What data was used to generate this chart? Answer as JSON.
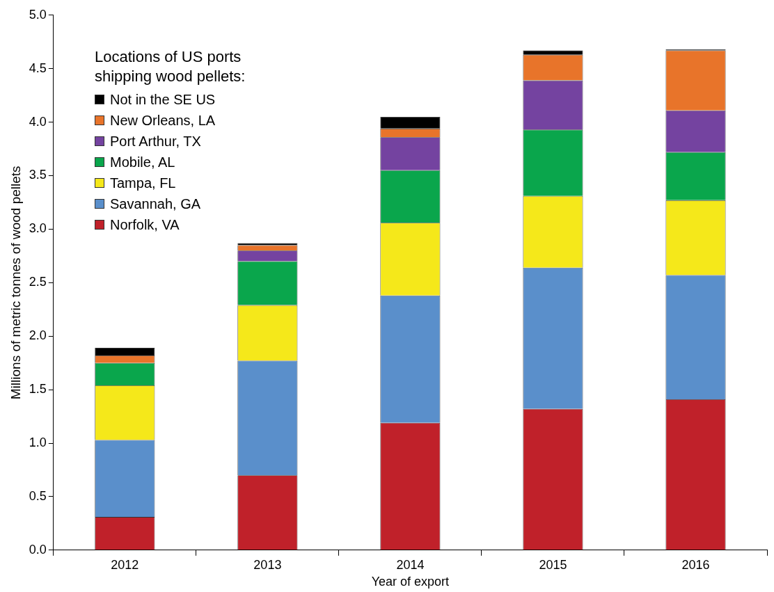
{
  "chart_data": {
    "type": "bar",
    "stacked": true,
    "xlabel": "Year of export",
    "ylabel": "Millions of metric tonnes of wood pellets",
    "legend_title": "Locations of US ports shipping wood pellets:",
    "legend": "top left",
    "grid": false,
    "categories": [
      "2012",
      "2013",
      "2014",
      "2015",
      "2016"
    ],
    "ylim": [
      0,
      5
    ],
    "yticks": [
      {
        "value": 0,
        "label": "0.0"
      },
      {
        "value": 0.5,
        "label": "0.5"
      },
      {
        "value": 1,
        "label": "1.0"
      },
      {
        "value": 1.5,
        "label": "1.5"
      },
      {
        "value": 2,
        "label": "2.0"
      },
      {
        "value": 2.5,
        "label": "2.5"
      },
      {
        "value": 3,
        "label": "3.0"
      },
      {
        "value": 3.5,
        "label": "3.5"
      },
      {
        "value": 4,
        "label": "4.0"
      },
      {
        "value": 4.5,
        "label": "4.5"
      },
      {
        "value": 5,
        "label": "5.0"
      }
    ],
    "series": [
      {
        "name": "Norfolk, VA",
        "color": "#c0212a",
        "values": [
          0.31,
          0.7,
          1.19,
          1.32,
          1.41
        ]
      },
      {
        "name": "Savannah, GA",
        "color": "#5a8fcb",
        "values": [
          0.72,
          1.07,
          1.19,
          1.32,
          1.16
        ]
      },
      {
        "name": "Tampa, FL",
        "color": "#f5e81a",
        "values": [
          0.51,
          0.52,
          0.68,
          0.67,
          0.7
        ]
      },
      {
        "name": "Mobile, AL",
        "color": "#0aa64c",
        "values": [
          0.21,
          0.41,
          0.49,
          0.62,
          0.45
        ]
      },
      {
        "name": "Port Arthur, TX",
        "color": "#7443a0",
        "values": [
          0,
          0.1,
          0.31,
          0.46,
          0.39
        ]
      },
      {
        "name": "New Orleans, LA",
        "color": "#e8742a",
        "values": [
          0.07,
          0.05,
          0.08,
          0.24,
          0.56
        ]
      },
      {
        "name": "Not in the SE US",
        "color": "#000000",
        "values": [
          0.07,
          0.02,
          0.11,
          0.04,
          0.01
        ]
      }
    ]
  }
}
